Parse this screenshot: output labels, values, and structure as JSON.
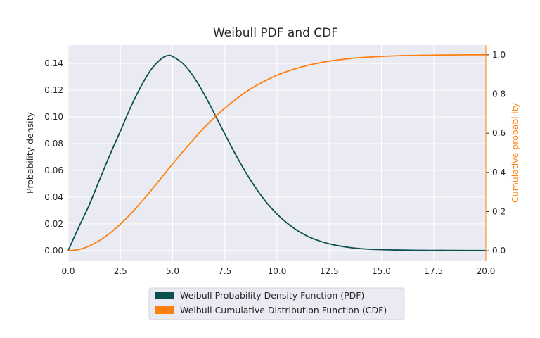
{
  "chart_data": {
    "type": "line",
    "title": "Weibull PDF and CDF",
    "xlabel": "",
    "ylabel": "Probability density",
    "y2label": "Cumulative probability",
    "xlim": [
      0,
      20
    ],
    "ylim": [
      -0.0075,
      0.1538
    ],
    "y2lim": [
      -0.05,
      1.05
    ],
    "xticks": [
      "0.0",
      "2.5",
      "5.0",
      "7.5",
      "10.0",
      "12.5",
      "15.0",
      "17.5",
      "20.0"
    ],
    "yticks": [
      "0.00",
      "0.02",
      "0.04",
      "0.06",
      "0.08",
      "0.10",
      "0.12",
      "0.14"
    ],
    "y2ticks": [
      "0.0",
      "0.2",
      "0.4",
      "0.6",
      "0.8",
      "1.0"
    ],
    "grid": true,
    "legend_position": "bottom-center",
    "series": [
      {
        "name": "Weibull Probability Density Function (PDF)",
        "axis": "left",
        "color": "#0b4f50",
        "x": [
          0,
          0.5,
          1,
          1.5,
          2,
          2.5,
          3,
          3.5,
          4,
          4.5,
          4.8,
          5,
          5.5,
          6,
          6.5,
          7,
          7.5,
          8,
          8.5,
          9,
          9.5,
          10,
          10.5,
          11,
          11.5,
          12,
          12.5,
          13,
          13.5,
          14,
          14.5,
          15,
          15.5,
          16,
          17,
          18,
          19,
          20
        ],
        "y": [
          0,
          0.0173,
          0.0339,
          0.0529,
          0.0717,
          0.0894,
          0.1076,
          0.1233,
          0.1361,
          0.144,
          0.146,
          0.1452,
          0.1399,
          0.1302,
          0.1174,
          0.1025,
          0.0872,
          0.0723,
          0.0586,
          0.0464,
          0.0359,
          0.0273,
          0.0203,
          0.0147,
          0.0104,
          0.0073,
          0.005,
          0.0034,
          0.0022,
          0.0014,
          0.0009,
          0.0006,
          0.0004,
          0.0003,
          0.0001,
          0.0001,
          0,
          0
        ]
      },
      {
        "name": "Weibull Cumulative Distribution Function (CDF)",
        "axis": "right",
        "color": "#ff7f0e",
        "x": [
          0,
          0.5,
          1,
          1.5,
          2,
          2.5,
          3,
          3.5,
          4,
          4.5,
          5,
          5.5,
          6,
          6.5,
          7,
          7.5,
          8,
          8.5,
          9,
          9.5,
          10,
          10.5,
          11,
          11.5,
          12,
          12.5,
          13,
          13.5,
          14,
          14.5,
          15,
          16,
          17,
          18,
          19,
          20
        ],
        "y": [
          0,
          0.006,
          0.024,
          0.052,
          0.09,
          0.136,
          0.189,
          0.249,
          0.312,
          0.377,
          0.443,
          0.507,
          0.568,
          0.627,
          0.68,
          0.728,
          0.771,
          0.81,
          0.843,
          0.871,
          0.896,
          0.916,
          0.933,
          0.947,
          0.958,
          0.968,
          0.975,
          0.981,
          0.986,
          0.989,
          0.992,
          0.996,
          0.998,
          0.999,
          1.0,
          1.0
        ]
      }
    ]
  }
}
